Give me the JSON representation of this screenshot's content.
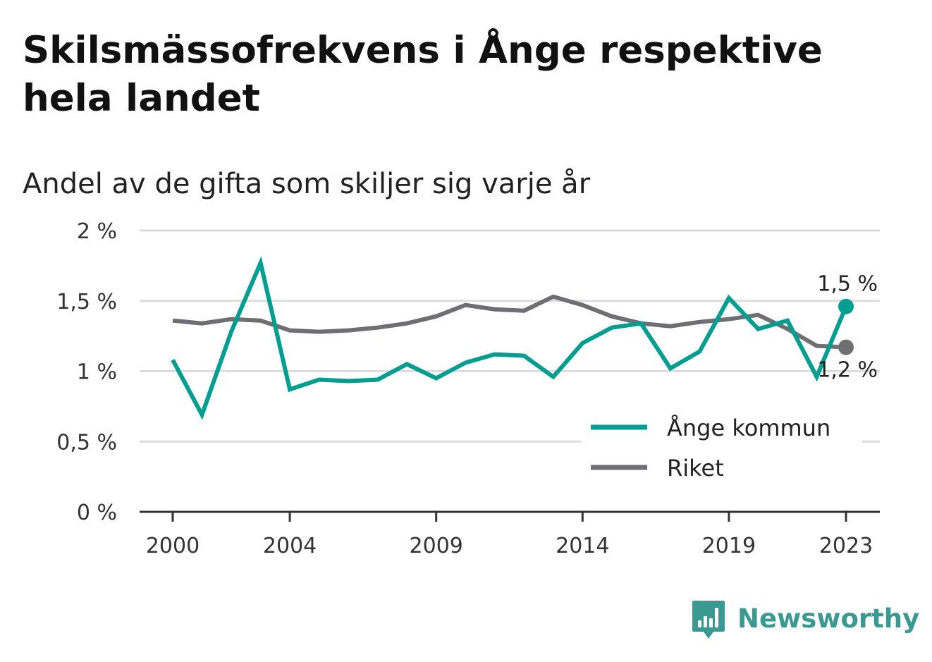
{
  "title": "Skilsmässofrekvens i Ånge respektive hela landet",
  "subtitle": "Andel av de gifta som skiljer sig varje år",
  "brand": "Newsworthy",
  "colors": {
    "ange": "#009e91",
    "riket": "#6e6e73",
    "grid": "#dddddd",
    "axis": "#333333",
    "brand": "#3a9a92"
  },
  "chart_data": {
    "type": "line",
    "x": [
      2000,
      2001,
      2002,
      2003,
      2004,
      2005,
      2006,
      2007,
      2008,
      2009,
      2010,
      2011,
      2012,
      2013,
      2014,
      2015,
      2016,
      2017,
      2018,
      2019,
      2020,
      2021,
      2022,
      2023
    ],
    "ylim": [
      0,
      2
    ],
    "y_ticks": [
      0,
      0.5,
      1,
      1.5,
      2
    ],
    "y_tick_labels": [
      "0 %",
      "0,5 %",
      "1 %",
      "1,5 %",
      "2 %"
    ],
    "x_ticks": [
      2000,
      2004,
      2009,
      2014,
      2019,
      2023
    ],
    "x_tick_labels": [
      "2000",
      "2004",
      "2009",
      "2014",
      "2019",
      "2023"
    ],
    "grid": true,
    "legend_position": "bottom-right",
    "series": [
      {
        "name": "Ånge kommun",
        "color": "#009e91",
        "values": [
          1.08,
          0.69,
          1.28,
          1.77,
          0.87,
          0.94,
          0.93,
          0.94,
          1.05,
          0.95,
          1.06,
          1.12,
          1.11,
          0.96,
          1.2,
          1.31,
          1.34,
          1.02,
          1.14,
          1.52,
          1.3,
          1.36,
          0.96,
          1.46
        ],
        "end_label": "1,5 %"
      },
      {
        "name": "Riket",
        "color": "#6e6e73",
        "values": [
          1.36,
          1.34,
          1.37,
          1.36,
          1.29,
          1.28,
          1.29,
          1.31,
          1.34,
          1.39,
          1.47,
          1.44,
          1.43,
          1.53,
          1.47,
          1.39,
          1.34,
          1.32,
          1.35,
          1.37,
          1.4,
          1.3,
          1.18,
          1.17
        ],
        "end_label": "1,2 %"
      }
    ]
  }
}
